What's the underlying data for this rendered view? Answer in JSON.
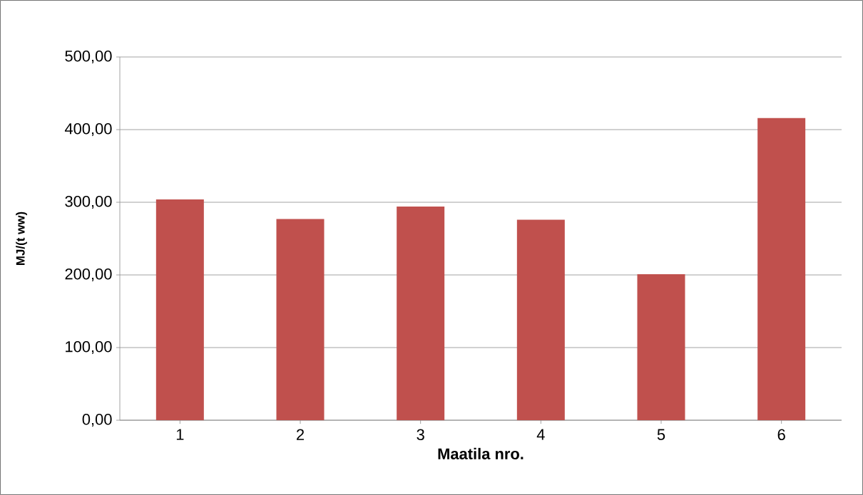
{
  "chart_data": {
    "type": "bar",
    "xlabel": "Maatila nro.",
    "ylabel": "MJ/(t ww)",
    "categories": [
      "1",
      "2",
      "3",
      "4",
      "5",
      "6"
    ],
    "values": [
      304,
      277,
      294,
      276,
      201,
      416
    ],
    "color": "#c0504d",
    "ylim": [
      0,
      500
    ],
    "yticks": [
      {
        "value": 0,
        "label": "0,00"
      },
      {
        "value": 100,
        "label": "100,00"
      },
      {
        "value": 200,
        "label": "200,00"
      },
      {
        "value": 300,
        "label": "300,00"
      },
      {
        "value": 400,
        "label": "400,00"
      },
      {
        "value": 500,
        "label": "500,00"
      }
    ],
    "grid": "y"
  }
}
